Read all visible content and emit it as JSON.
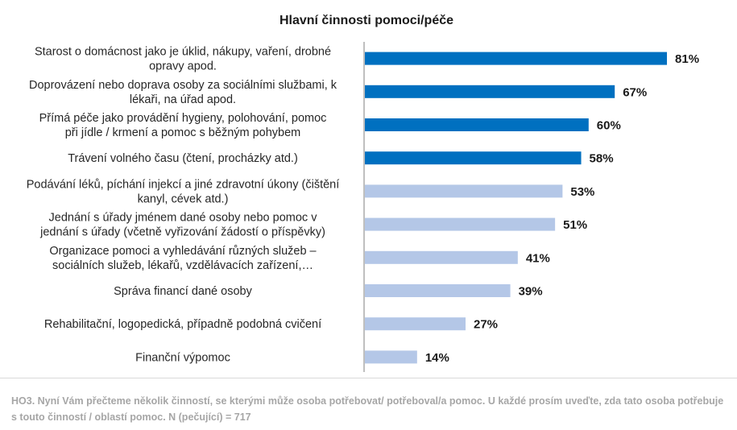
{
  "chart_data": {
    "type": "bar",
    "orientation": "horizontal",
    "title": "Hlavní činnosti pomoci/péče",
    "categories": [
      [
        "Starost o domácnost jako je úklid, nákupy, vaření, drobné",
        "opravy apod."
      ],
      [
        "Doprovázení nebo doprava osoby za sociálními službami, k",
        "lékaři, na úřad apod."
      ],
      [
        "Přímá péče jako provádění hygieny, polohování, pomoc",
        "při jídle / krmení a pomoc s běžným pohybem"
      ],
      [
        "Trávení volného času (čtení, procházky atd.)"
      ],
      [
        "Podávání léků, píchání injekcí a jiné zdravotní úkony (čištění",
        "kanyl, cévek atd.)"
      ],
      [
        "Jednání s úřady jménem dané osoby nebo pomoc v",
        "jednání s úřady (včetně vyřizování žádostí o příspěvky)"
      ],
      [
        "Organizace pomoci a vyhledávání různých služeb –",
        "sociálních služeb, lékařů, vzdělávacích zařízení,…"
      ],
      [
        "Správa financí dané osoby"
      ],
      [
        "Rehabilitační, logopedická, případně podobná cvičení"
      ],
      [
        "Finanční výpomoc"
      ]
    ],
    "values": [
      81,
      67,
      60,
      58,
      53,
      51,
      41,
      39,
      27,
      14
    ],
    "value_labels": [
      "81%",
      "67%",
      "60%",
      "58%",
      "53%",
      "51%",
      "41%",
      "39%",
      "27%",
      "14%"
    ],
    "highlighted_count": 4,
    "colors": {
      "highlight": "#0070c0",
      "normal": "#b4c7e7"
    },
    "xlim": [
      0,
      100
    ],
    "grid": false,
    "legend": "none"
  },
  "footnote": "HO3. Nyní Vám přečteme několik činností, se kterými může osoba potřebovat/ potřeboval/a pomoc. U každé prosím uveďte, zda tato osoba potřebuje s touto činností / oblastí pomoc. N (pečující) = 717"
}
